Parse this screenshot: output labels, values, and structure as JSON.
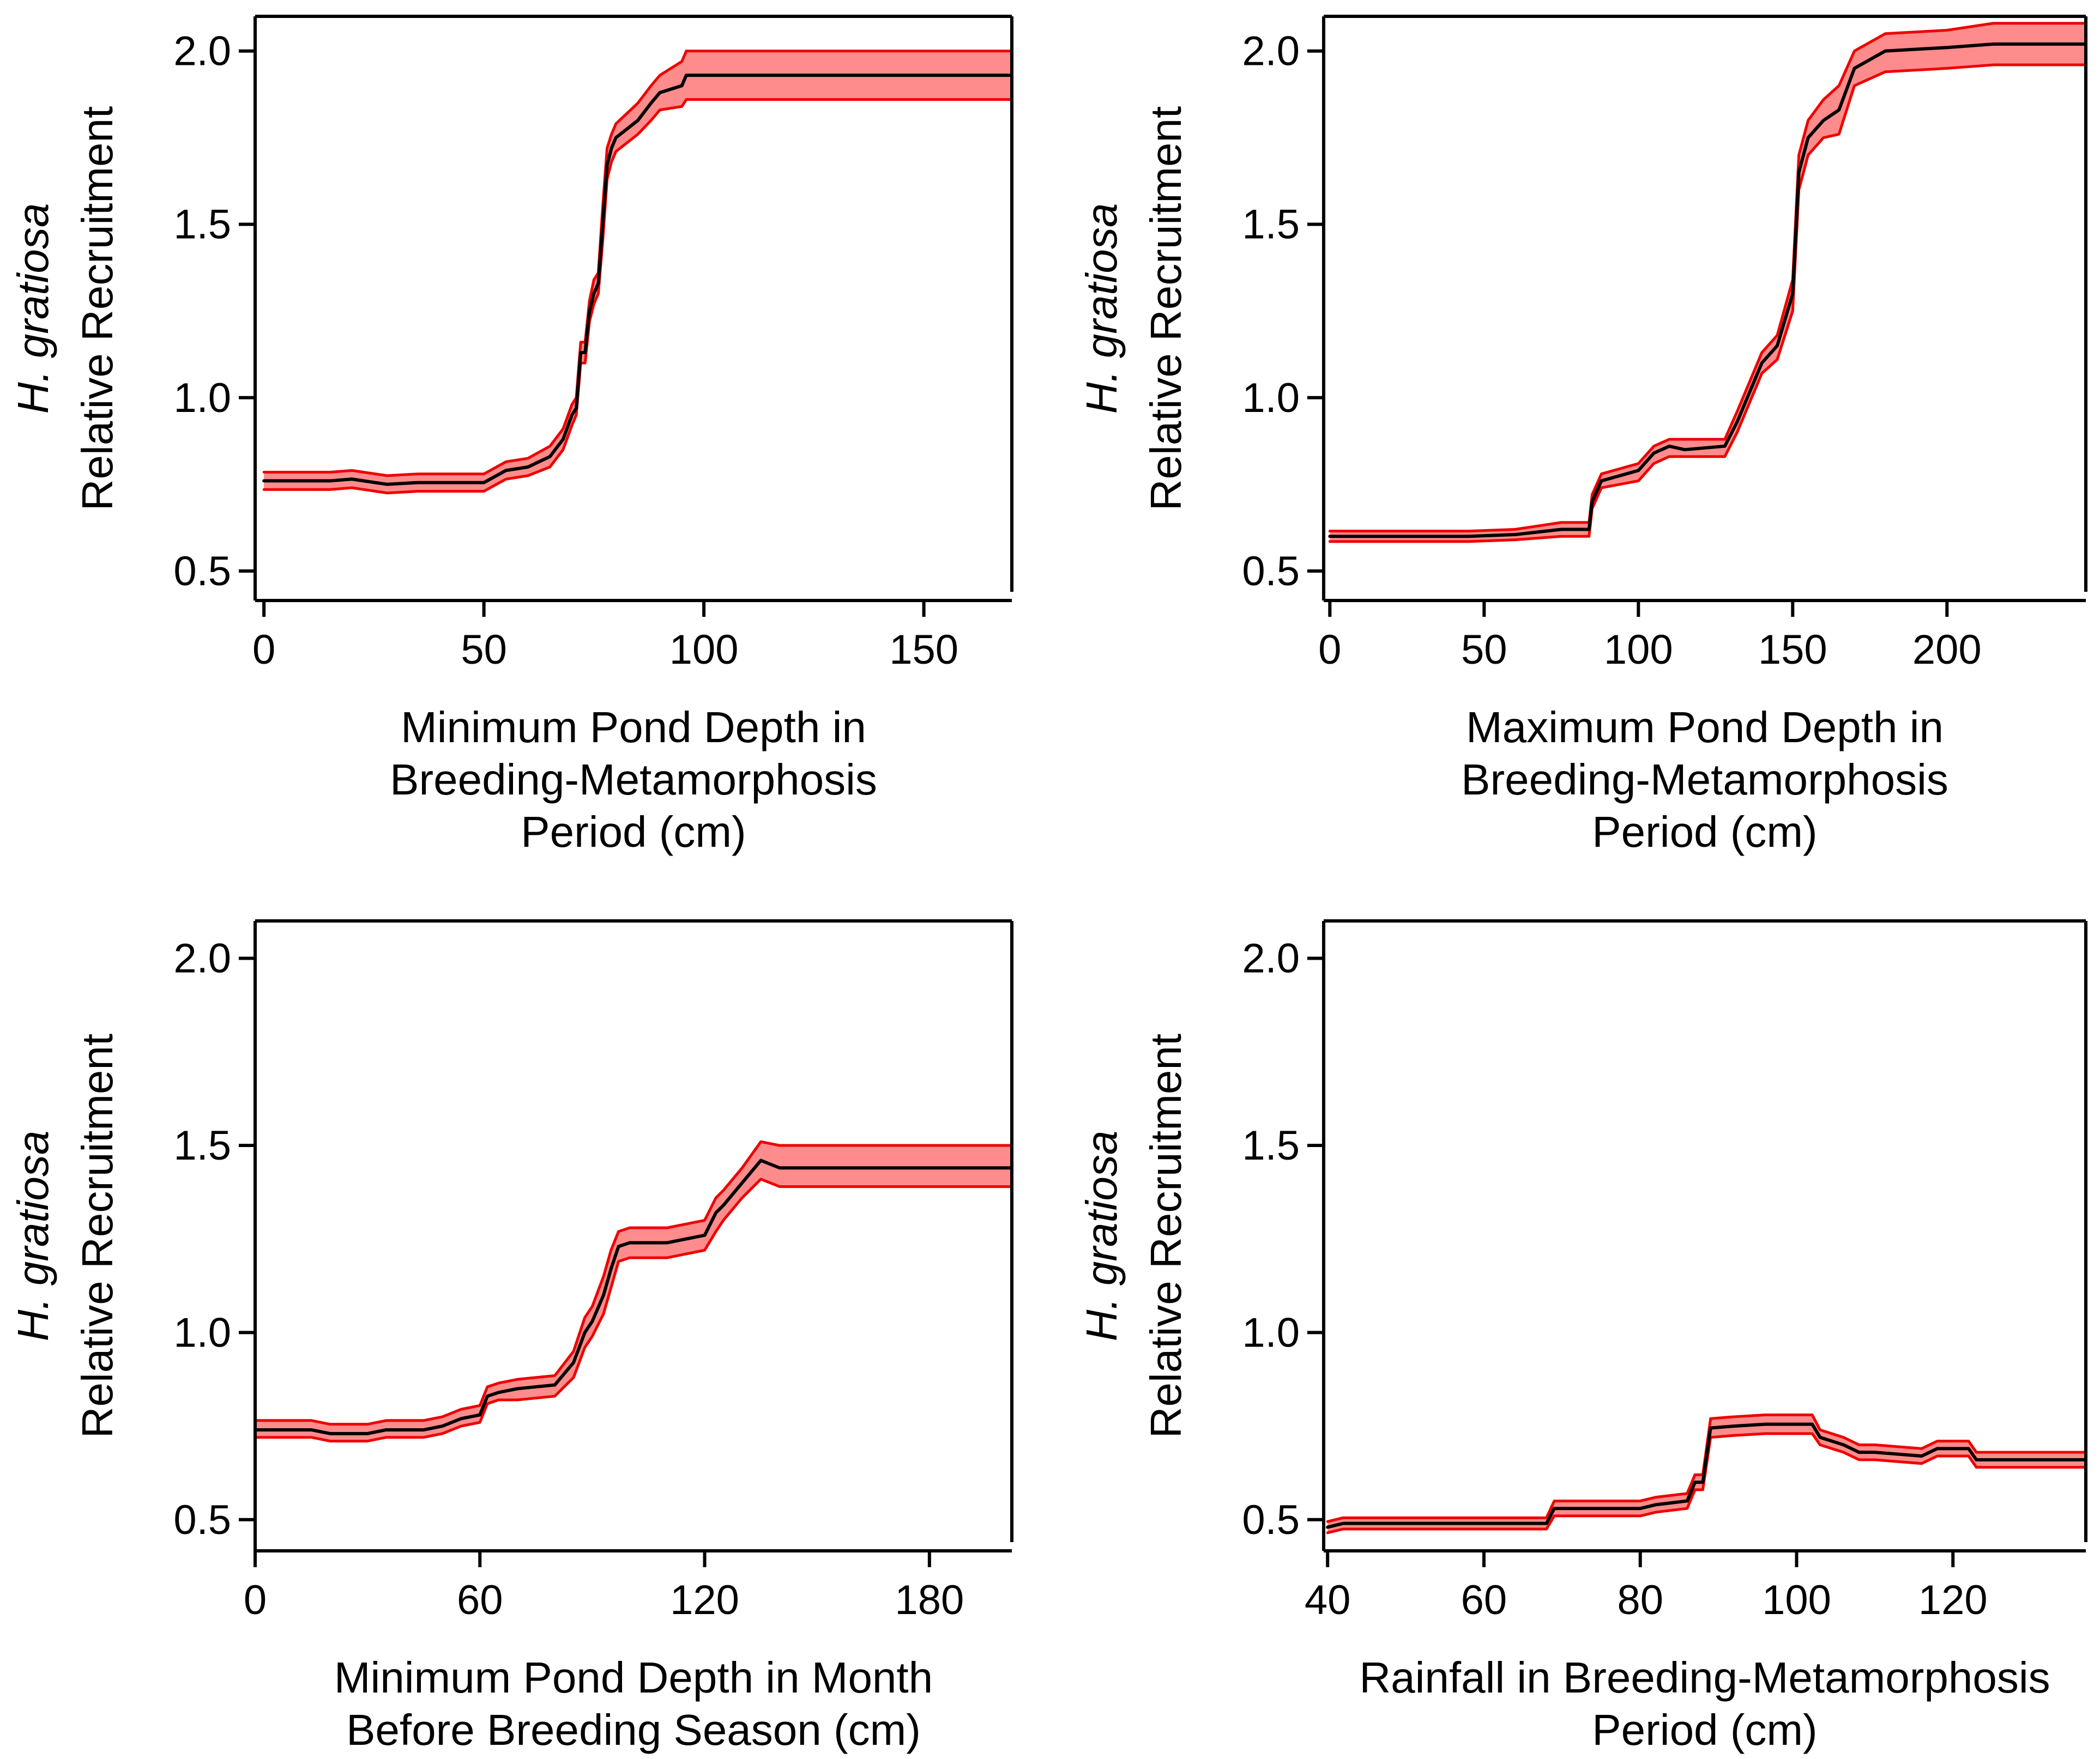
{
  "chart_data": [
    {
      "type": "line",
      "panel": "top-left",
      "ylabel": {
        "species": "H. gratiosa",
        "text": "Relative Recruitment"
      },
      "xlabel": [
        "Minimum Pond Depth in",
        "Breeding-Metamorphosis",
        "Period (cm)"
      ],
      "xlim": [
        -2,
        170
      ],
      "ylim": [
        0.44,
        2.1
      ],
      "xticks": [
        0,
        50,
        100,
        150
      ],
      "yticks": [
        0.5,
        1.0,
        1.5,
        2.0
      ],
      "ytick_labels": [
        "0.5",
        "1.0",
        "1.5",
        "2.0"
      ],
      "series": [
        {
          "name": "mean",
          "x": [
            0,
            15,
            20,
            28,
            35,
            50,
            55,
            60,
            65,
            68,
            70,
            71,
            72,
            73,
            74,
            75,
            76,
            77,
            78,
            79,
            80,
            85,
            88,
            90,
            95,
            96,
            170
          ],
          "y": [
            0.76,
            0.76,
            0.765,
            0.75,
            0.755,
            0.755,
            0.79,
            0.8,
            0.83,
            0.88,
            0.95,
            0.97,
            1.13,
            1.13,
            1.25,
            1.3,
            1.33,
            1.5,
            1.67,
            1.72,
            1.75,
            1.8,
            1.85,
            1.88,
            1.9,
            1.93,
            1.93
          ]
        },
        {
          "name": "ci_lower",
          "x": [
            0,
            15,
            20,
            28,
            35,
            50,
            55,
            60,
            65,
            68,
            70,
            71,
            72,
            73,
            74,
            75,
            76,
            77,
            78,
            79,
            80,
            85,
            88,
            90,
            95,
            96,
            170
          ],
          "y": [
            0.735,
            0.735,
            0.74,
            0.725,
            0.73,
            0.73,
            0.765,
            0.775,
            0.8,
            0.85,
            0.92,
            0.95,
            1.1,
            1.1,
            1.22,
            1.27,
            1.3,
            1.45,
            1.63,
            1.68,
            1.71,
            1.76,
            1.8,
            1.83,
            1.84,
            1.86,
            1.86
          ]
        },
        {
          "name": "ci_upper",
          "x": [
            0,
            15,
            20,
            28,
            35,
            50,
            55,
            60,
            65,
            68,
            70,
            71,
            72,
            73,
            74,
            75,
            76,
            77,
            78,
            79,
            80,
            85,
            88,
            90,
            95,
            96,
            170
          ],
          "y": [
            0.785,
            0.785,
            0.79,
            0.775,
            0.78,
            0.78,
            0.815,
            0.825,
            0.86,
            0.91,
            0.98,
            1.0,
            1.16,
            1.16,
            1.28,
            1.34,
            1.36,
            1.55,
            1.72,
            1.76,
            1.79,
            1.85,
            1.9,
            1.93,
            1.97,
            2.0,
            2.0
          ]
        }
      ]
    },
    {
      "type": "line",
      "panel": "top-right",
      "ylabel": {
        "species": "H. gratiosa",
        "text": "Relative Recruitment"
      },
      "xlabel": [
        "Maximum Pond Depth in",
        "Breeding-Metamorphosis",
        "Period (cm)"
      ],
      "xlim": [
        -2,
        245
      ],
      "ylim": [
        0.44,
        2.1
      ],
      "xticks": [
        0,
        50,
        100,
        150,
        200
      ],
      "yticks": [
        0.5,
        1.0,
        1.5,
        2.0
      ],
      "ytick_labels": [
        "0.5",
        "1.0",
        "1.5",
        "2.0"
      ],
      "series": [
        {
          "name": "mean",
          "x": [
            0,
            45,
            60,
            75,
            84,
            85,
            88,
            100,
            105,
            110,
            115,
            128,
            132,
            140,
            145,
            150,
            152,
            155,
            160,
            165,
            170,
            180,
            200,
            215,
            245
          ],
          "y": [
            0.6,
            0.6,
            0.605,
            0.62,
            0.62,
            0.7,
            0.76,
            0.79,
            0.84,
            0.86,
            0.85,
            0.86,
            0.93,
            1.1,
            1.15,
            1.3,
            1.65,
            1.75,
            1.8,
            1.83,
            1.95,
            2.0,
            2.01,
            2.02,
            2.02
          ]
        },
        {
          "name": "ci_lower",
          "x": [
            0,
            45,
            60,
            75,
            84,
            85,
            88,
            100,
            105,
            110,
            115,
            128,
            132,
            140,
            145,
            150,
            152,
            155,
            160,
            165,
            170,
            180,
            200,
            215,
            245
          ],
          "y": [
            0.585,
            0.585,
            0.59,
            0.6,
            0.6,
            0.68,
            0.74,
            0.76,
            0.81,
            0.83,
            0.83,
            0.83,
            0.9,
            1.07,
            1.11,
            1.25,
            1.6,
            1.7,
            1.75,
            1.76,
            1.9,
            1.94,
            1.95,
            1.96,
            1.96
          ]
        },
        {
          "name": "ci_upper",
          "x": [
            0,
            45,
            60,
            75,
            84,
            85,
            88,
            100,
            105,
            110,
            115,
            128,
            132,
            140,
            145,
            150,
            152,
            155,
            160,
            165,
            170,
            180,
            200,
            215,
            245
          ],
          "y": [
            0.615,
            0.615,
            0.62,
            0.64,
            0.64,
            0.72,
            0.78,
            0.81,
            0.86,
            0.88,
            0.88,
            0.88,
            0.96,
            1.13,
            1.18,
            1.34,
            1.7,
            1.8,
            1.86,
            1.9,
            2.0,
            2.05,
            2.06,
            2.08,
            2.08
          ]
        }
      ]
    },
    {
      "type": "line",
      "panel": "bottom-left",
      "ylabel": {
        "species": "H. gratiosa",
        "text": "Relative Recruitment"
      },
      "xlabel": [
        "Minimum Pond Depth in Month",
        "Before Breeding Season (cm)"
      ],
      "xlim": [
        0,
        202
      ],
      "ylim": [
        0.44,
        2.1
      ],
      "xticks": [
        0,
        60,
        120,
        180
      ],
      "yticks": [
        0.5,
        1.0,
        1.5,
        2.0
      ],
      "ytick_labels": [
        "0.5",
        "1.0",
        "1.5",
        "2.0"
      ],
      "series": [
        {
          "name": "mean",
          "x": [
            0,
            15,
            20,
            30,
            35,
            45,
            50,
            55,
            60,
            62,
            65,
            70,
            80,
            85,
            88,
            90,
            93,
            95,
            97,
            100,
            110,
            115,
            120,
            123,
            125,
            130,
            135,
            140,
            202
          ],
          "y": [
            0.74,
            0.74,
            0.73,
            0.73,
            0.74,
            0.74,
            0.75,
            0.77,
            0.78,
            0.83,
            0.84,
            0.85,
            0.86,
            0.92,
            1.0,
            1.03,
            1.1,
            1.17,
            1.23,
            1.24,
            1.24,
            1.25,
            1.26,
            1.32,
            1.34,
            1.4,
            1.46,
            1.44,
            1.44
          ]
        },
        {
          "name": "ci_lower",
          "x": [
            0,
            15,
            20,
            30,
            35,
            45,
            50,
            55,
            60,
            62,
            65,
            70,
            80,
            85,
            88,
            90,
            93,
            95,
            97,
            100,
            110,
            115,
            120,
            123,
            125,
            130,
            135,
            140,
            202
          ],
          "y": [
            0.72,
            0.72,
            0.71,
            0.71,
            0.72,
            0.72,
            0.73,
            0.75,
            0.76,
            0.81,
            0.82,
            0.82,
            0.83,
            0.88,
            0.96,
            0.99,
            1.05,
            1.12,
            1.19,
            1.2,
            1.2,
            1.21,
            1.22,
            1.27,
            1.3,
            1.36,
            1.41,
            1.39,
            1.39
          ]
        },
        {
          "name": "ci_upper",
          "x": [
            0,
            15,
            20,
            30,
            35,
            45,
            50,
            55,
            60,
            62,
            65,
            70,
            80,
            85,
            88,
            90,
            93,
            95,
            97,
            100,
            110,
            115,
            120,
            123,
            125,
            130,
            135,
            140,
            202
          ],
          "y": [
            0.765,
            0.765,
            0.755,
            0.755,
            0.765,
            0.765,
            0.775,
            0.795,
            0.805,
            0.855,
            0.865,
            0.875,
            0.885,
            0.95,
            1.04,
            1.07,
            1.15,
            1.22,
            1.27,
            1.28,
            1.28,
            1.29,
            1.3,
            1.36,
            1.38,
            1.44,
            1.51,
            1.5,
            1.5
          ]
        }
      ]
    },
    {
      "type": "line",
      "panel": "bottom-right",
      "ylabel": {
        "species": "H. gratiosa",
        "text": "Relative Recruitment"
      },
      "xlabel": [
        "Rainfall in Breeding-Metamorphosis",
        "Period (cm)"
      ],
      "xlim": [
        39.5,
        137
      ],
      "ylim": [
        0.44,
        2.1
      ],
      "xticks": [
        40,
        60,
        80,
        100,
        120
      ],
      "yticks": [
        0.5,
        1.0,
        1.5,
        2.0
      ],
      "ytick_labels": [
        "0.5",
        "1.0",
        "1.5",
        "2.0"
      ],
      "series": [
        {
          "name": "mean",
          "x": [
            40,
            42,
            68,
            69,
            80,
            82,
            86,
            87,
            88,
            89,
            92,
            96,
            102,
            103,
            106,
            108,
            110,
            116,
            118,
            122,
            123,
            137
          ],
          "y": [
            0.48,
            0.49,
            0.49,
            0.53,
            0.53,
            0.54,
            0.55,
            0.6,
            0.6,
            0.745,
            0.75,
            0.755,
            0.755,
            0.72,
            0.7,
            0.68,
            0.68,
            0.67,
            0.69,
            0.69,
            0.66,
            0.66
          ]
        },
        {
          "name": "ci_lower",
          "x": [
            40,
            42,
            68,
            69,
            80,
            82,
            86,
            87,
            88,
            89,
            92,
            96,
            102,
            103,
            106,
            108,
            110,
            116,
            118,
            122,
            123,
            137
          ],
          "y": [
            0.465,
            0.475,
            0.475,
            0.51,
            0.51,
            0.52,
            0.53,
            0.58,
            0.58,
            0.72,
            0.725,
            0.73,
            0.73,
            0.7,
            0.68,
            0.66,
            0.66,
            0.65,
            0.67,
            0.67,
            0.64,
            0.64
          ]
        },
        {
          "name": "ci_upper",
          "x": [
            40,
            42,
            68,
            69,
            80,
            82,
            86,
            87,
            88,
            89,
            92,
            96,
            102,
            103,
            106,
            108,
            110,
            116,
            118,
            122,
            123,
            137
          ],
          "y": [
            0.495,
            0.505,
            0.505,
            0.55,
            0.55,
            0.56,
            0.57,
            0.62,
            0.62,
            0.77,
            0.775,
            0.78,
            0.78,
            0.74,
            0.72,
            0.7,
            0.7,
            0.69,
            0.71,
            0.71,
            0.68,
            0.68
          ]
        }
      ]
    }
  ]
}
